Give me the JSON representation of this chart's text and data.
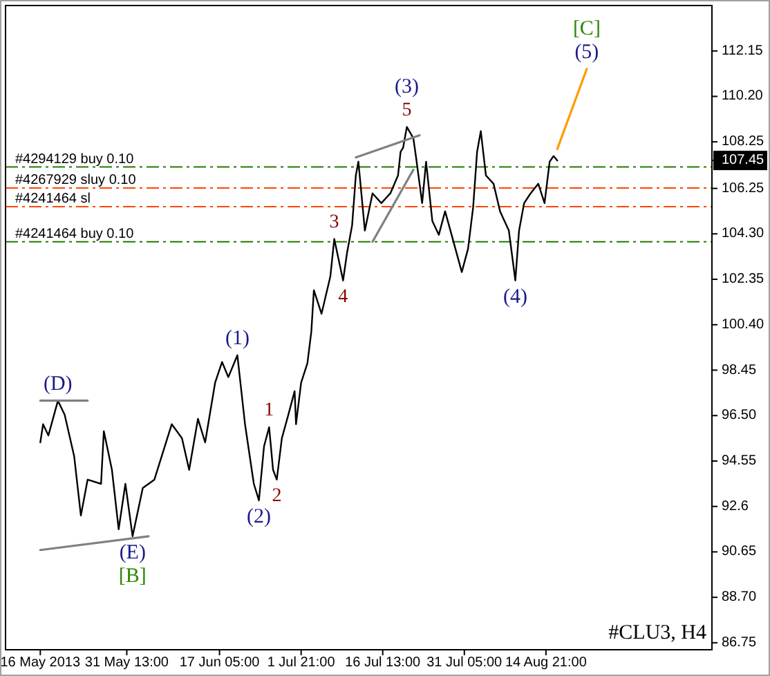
{
  "chart_data": {
    "type": "line",
    "title": "#CLU3, H4",
    "xlim": [
      "2013-05-09T18:00",
      "2013-09-13T17:00"
    ],
    "ylim": [
      86.45,
      114.1
    ],
    "xticks": [
      {
        "value": "2013-05-16T00:00",
        "label": "16 May 2013"
      },
      {
        "value": "2013-05-31T13:00",
        "label": "31 May 13:00"
      },
      {
        "value": "2013-06-17T05:00",
        "label": "17 Jun 05:00"
      },
      {
        "value": "2013-07-01T21:00",
        "label": "1 Jul 21:00"
      },
      {
        "value": "2013-07-16T13:00",
        "label": "16 Jul 13:00"
      },
      {
        "value": "2013-07-31T05:00",
        "label": "31 Jul 05:00"
      },
      {
        "value": "2013-08-14T21:00",
        "label": "14 Aug 21:00"
      }
    ],
    "yticks": [
      86.75,
      {
        "value": 88.7,
        "label": "88.70"
      },
      90.65,
      92.6,
      94.55,
      {
        "value": 96.5,
        "label": "96.50"
      },
      98.45,
      {
        "value": 100.4,
        "label": "100.40"
      },
      102.35,
      {
        "value": 104.3,
        "label": "104.30"
      },
      106.25,
      107.45,
      108.25,
      {
        "value": 110.2,
        "label": "110.20"
      },
      112.15
    ],
    "line_style": "solid",
    "series": [
      {
        "color": "#000000",
        "x": [
          "2013-05-16T00:00",
          "2013-05-16T12:00",
          "2013-05-17T11:00",
          "2013-05-19T04:00",
          "2013-05-20T09:00",
          "2013-05-22T02:00",
          "2013-05-23T07:00",
          "2013-05-24T12:00",
          "2013-05-26T22:00",
          "2013-05-27T10:00",
          "2013-05-28T21:00",
          "2013-05-30T02:00",
          "2013-05-31T07:00",
          "2013-06-01T14:00",
          "2013-06-03T10:00",
          "2013-06-05T12:00",
          "2013-06-08T15:00",
          "2013-06-10T11:00",
          "2013-06-11T18:00",
          "2013-06-13T08:00",
          "2013-06-14T15:00",
          "2013-06-16T10:00",
          "2013-06-17T16:00",
          "2013-06-18T19:00",
          "2013-06-20T10:00",
          "2013-06-21T19:00",
          "2013-06-23T09:00",
          "2013-06-24T07:00",
          "2013-06-25T05:00",
          "2013-06-26T03:00",
          "2013-06-26T20:00",
          "2013-06-27T12:00",
          "2013-06-28T10:00",
          "2013-06-29T14:00",
          "2013-06-30T17:00",
          "2013-06-30T23:00",
          "2013-07-01T21:00",
          "2013-07-03T00:00",
          "2013-07-03T17:00",
          "2013-07-04T04:00",
          "2013-07-05T13:00",
          "2013-07-07T03:00",
          "2013-07-07T20:00",
          "2013-07-09T10:00",
          "2013-07-10T03:00",
          "2013-07-11T01:00",
          "2013-07-11T17:00",
          "2013-07-12T04:00",
          "2013-07-13T08:00",
          "2013-07-14T17:00",
          "2013-07-16T07:00",
          "2013-07-17T22:00",
          "2013-07-19T07:00",
          "2013-07-19T18:00",
          "2013-07-20T05:00",
          "2013-07-20T21:00",
          "2013-07-22T01:00",
          "2013-07-22T12:00",
          "2013-07-23T15:00",
          "2013-07-24T08:00",
          "2013-07-25T11:00",
          "2013-07-26T15:00",
          "2013-07-27T18:00",
          "2013-07-28T22:00",
          "2013-07-30T18:00",
          "2013-07-31T21:00",
          "2013-08-01T19:00",
          "2013-08-02T12:00",
          "2013-08-03T04:00",
          "2013-08-04T02:00",
          "2013-08-05T11:00",
          "2013-08-06T15:00",
          "2013-08-08T05:00",
          "2013-08-09T09:00",
          "2013-08-10T01:00",
          "2013-08-10T23:00",
          "2013-08-12T03:00",
          "2013-08-13T12:00",
          "2013-08-14T15:00",
          "2013-08-15T13:00",
          "2013-08-16T06:00",
          "2013-08-16T22:00"
        ],
        "values": [
          95.35,
          96.13,
          95.65,
          97.14,
          96.54,
          94.76,
          92.21,
          93.75,
          93.57,
          95.83,
          94.17,
          91.62,
          93.57,
          91.32,
          93.39,
          93.75,
          96.13,
          95.53,
          94.17,
          96.36,
          95.35,
          97.91,
          98.8,
          98.15,
          99.09,
          96.13,
          93.57,
          92.86,
          95.18,
          96.0,
          94.17,
          93.75,
          95.53,
          96.54,
          97.55,
          96.13,
          97.91,
          98.74,
          100.1,
          101.88,
          100.87,
          102.47,
          104.08,
          102.3,
          103.48,
          104.67,
          106.81,
          107.4,
          104.44,
          106.04,
          105.62,
          106.04,
          106.81,
          107.82,
          108.0,
          108.89,
          108.41,
          107.64,
          105.62,
          107.4,
          104.85,
          104.26,
          105.27,
          104.26,
          102.66,
          103.66,
          105.44,
          107.82,
          108.71,
          106.81,
          106.45,
          105.27,
          104.44,
          102.3,
          104.44,
          105.62,
          106.04,
          106.45,
          105.62,
          107.4,
          107.64,
          107.45
        ]
      },
      {
        "color": "#ff9900",
        "x": [
          "2013-08-16T22:00",
          "2013-08-22T05:00"
        ],
        "values": [
          107.94,
          111.38
        ]
      },
      {
        "color": "#808080",
        "x": [
          "2013-05-16T00:00",
          "2013-05-24T12:00"
        ],
        "values": [
          97.14,
          97.14
        ]
      },
      {
        "color": "#808080",
        "x": [
          "2013-05-16T00:00",
          "2013-06-04T11:00"
        ],
        "values": [
          90.73,
          91.32
        ]
      },
      {
        "color": "#808080",
        "x": [
          "2013-07-11T17:00",
          "2013-07-23T04:00"
        ],
        "values": [
          107.58,
          108.53
        ]
      },
      {
        "color": "#808080",
        "x": [
          "2013-07-14T17:00",
          "2013-07-22T01:00"
        ],
        "values": [
          103.96,
          107.05
        ]
      }
    ],
    "ref_lines": [
      {
        "axis": "y",
        "value": 107.17,
        "label": "#4294129 buy 0.10",
        "color": "#1f7a00",
        "line_style": "dashed"
      },
      {
        "axis": "y",
        "value": 106.27,
        "label": "#4267929 sluy 0.10",
        "color": "#ff4500",
        "line_style": "dashed"
      },
      {
        "axis": "y",
        "value": 105.47,
        "label": "#4241464 sl",
        "color": "#ff4500",
        "line_style": "dashed"
      },
      {
        "axis": "y",
        "value": 103.96,
        "label": "#4241464 buy 0.10",
        "color": "#1f7a00",
        "line_style": "dashed"
      }
    ],
    "annotations": [
      {
        "text": "(D)",
        "x": "2013-05-19T04:00",
        "y": 97.14
      },
      {
        "text": "(E)",
        "x": "2013-06-01T14:00",
        "y": 91.32
      },
      {
        "text": "[B]",
        "x": "2013-06-01T14:00",
        "y": 91.32
      },
      {
        "text": "(1)",
        "x": "2013-06-20T10:00",
        "y": 99.09
      },
      {
        "text": "(2)",
        "x": "2013-06-24T07:00",
        "y": 92.86
      },
      {
        "text": "1",
        "x": "2013-06-26T03:00",
        "y": 96.0
      },
      {
        "text": "2",
        "x": "2013-06-27T12:00",
        "y": 93.75
      },
      {
        "text": "3",
        "x": "2013-07-07T20:00",
        "y": 104.08
      },
      {
        "text": "4",
        "x": "2013-07-09T10:00",
        "y": 102.3
      },
      {
        "text": "5",
        "x": "2013-07-20T21:00",
        "y": 108.89
      },
      {
        "text": "(3)",
        "x": "2013-07-20T21:00",
        "y": 108.89
      },
      {
        "text": "(4)",
        "x": "2013-08-09T09:00",
        "y": 102.3
      },
      {
        "text": "(5)",
        "x": "2013-08-22T05:00",
        "y": 111.38
      },
      {
        "text": "[C]",
        "x": "2013-08-22T05:00",
        "y": 111.38
      }
    ]
  }
}
